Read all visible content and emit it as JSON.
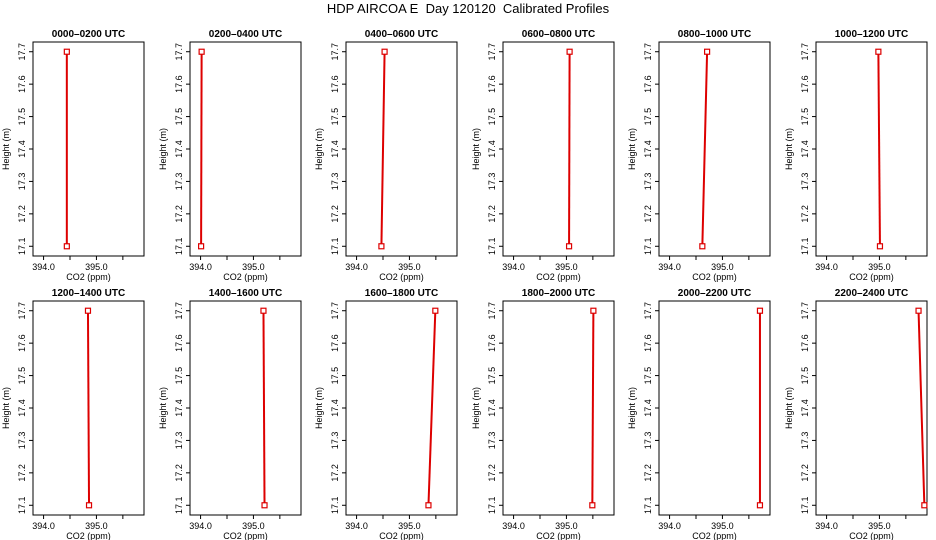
{
  "title": "HDP AIRCOA E  Day 120120  Calibrated Profiles",
  "axes": {
    "xlabel": "CO2 (ppm)",
    "ylabel": "Height (m)",
    "xlim": [
      393.8,
      395.9
    ],
    "ylim": [
      17.07,
      17.73
    ],
    "xticks": [
      394.0,
      394.5,
      395.0,
      395.5
    ],
    "xtick_labels": [
      "394.0",
      "",
      "395.0",
      ""
    ],
    "yticks": [
      17.1,
      17.2,
      17.3,
      17.4,
      17.5,
      17.6,
      17.7
    ],
    "ytick_labels": [
      "17.1",
      "17.2",
      "17.3",
      "17.4",
      "17.5",
      "17.6",
      "17.7"
    ]
  },
  "colors": {
    "profile": "#dd0000",
    "axis": "#000000"
  },
  "chart_data": [
    {
      "type": "line",
      "title": "0000–0200 UTC",
      "x": [
        394.44,
        394.44
      ],
      "y": [
        17.1,
        17.7
      ]
    },
    {
      "type": "line",
      "title": "0200–0400 UTC",
      "x": [
        394.01,
        394.02
      ],
      "y": [
        17.1,
        17.7
      ]
    },
    {
      "type": "line",
      "title": "0400–0600 UTC",
      "x": [
        394.47,
        394.53
      ],
      "y": [
        17.1,
        17.7
      ]
    },
    {
      "type": "line",
      "title": "0600–0800 UTC",
      "x": [
        395.05,
        395.06
      ],
      "y": [
        17.1,
        17.7
      ]
    },
    {
      "type": "line",
      "title": "0800–1000 UTC",
      "x": [
        394.62,
        394.71
      ],
      "y": [
        17.1,
        17.7
      ]
    },
    {
      "type": "line",
      "title": "1000–1200 UTC",
      "x": [
        395.01,
        394.98
      ],
      "y": [
        17.1,
        17.7
      ]
    },
    {
      "type": "line",
      "title": "1200–1400 UTC",
      "x": [
        394.86,
        394.84
      ],
      "y": [
        17.1,
        17.7
      ]
    },
    {
      "type": "line",
      "title": "1400–1600 UTC",
      "x": [
        395.21,
        395.19
      ],
      "y": [
        17.1,
        17.7
      ]
    },
    {
      "type": "line",
      "title": "1600–1800 UTC",
      "x": [
        395.36,
        395.49
      ],
      "y": [
        17.1,
        17.7
      ]
    },
    {
      "type": "line",
      "title": "1800–2000 UTC",
      "x": [
        395.49,
        395.51
      ],
      "y": [
        17.1,
        17.7
      ]
    },
    {
      "type": "line",
      "title": "2000–2200 UTC",
      "x": [
        395.71,
        395.71
      ],
      "y": [
        17.1,
        17.7
      ]
    },
    {
      "type": "line",
      "title": "2200–2400 UTC",
      "x": [
        395.85,
        395.74
      ],
      "y": [
        17.1,
        17.7
      ]
    }
  ]
}
